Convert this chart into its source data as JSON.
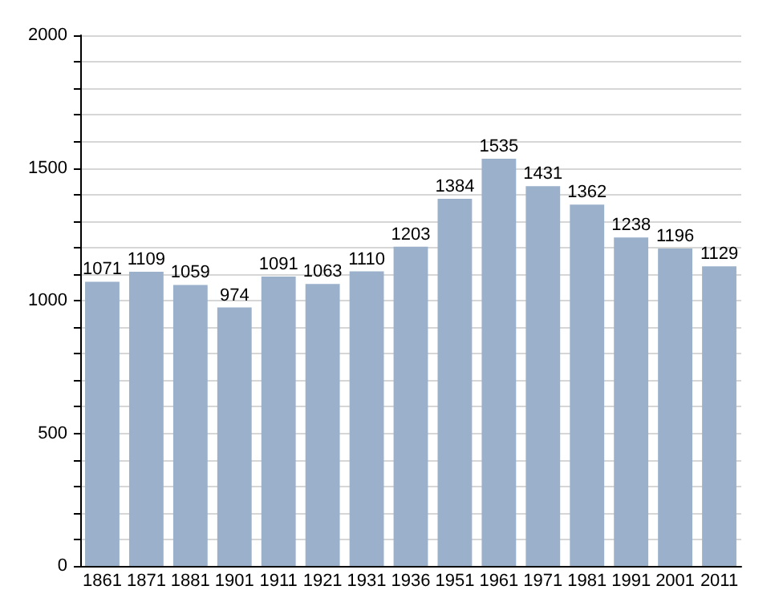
{
  "chart_data": {
    "type": "bar",
    "categories": [
      "1861",
      "1871",
      "1881",
      "1901",
      "1911",
      "1921",
      "1931",
      "1936",
      "1951",
      "1961",
      "1971",
      "1981",
      "1991",
      "2001",
      "2011"
    ],
    "values": [
      1071,
      1109,
      1059,
      974,
      1091,
      1063,
      1110,
      1203,
      1384,
      1535,
      1431,
      1362,
      1238,
      1196,
      1129
    ],
    "color": "#9bb1cb",
    "data_labels": true,
    "grid": "y",
    "ylim": [
      0,
      2000
    ],
    "yticks": [
      0,
      {
        "value": 100,
        "label": null
      },
      {
        "value": 200,
        "label": null
      },
      {
        "value": 300,
        "label": null
      },
      {
        "value": 400,
        "label": null
      },
      500,
      {
        "value": 600,
        "label": null
      },
      {
        "value": 700,
        "label": null
      },
      {
        "value": 800,
        "label": null
      },
      {
        "value": 900,
        "label": null
      },
      1000,
      {
        "value": 1100,
        "label": null
      },
      {
        "value": 1200,
        "label": null
      },
      {
        "value": 1300,
        "label": null
      },
      {
        "value": 1400,
        "label": null
      },
      1500,
      {
        "value": 1600,
        "label": null
      },
      {
        "value": 1700,
        "label": null
      },
      {
        "value": 1800,
        "label": null
      },
      {
        "value": 1900,
        "label": null
      },
      2000
    ]
  }
}
